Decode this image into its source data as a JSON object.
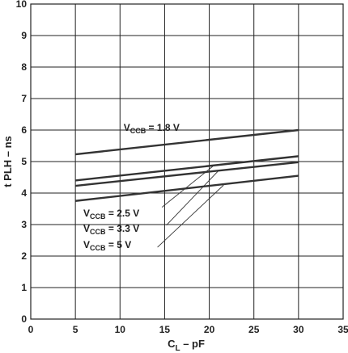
{
  "chart_data": {
    "type": "line",
    "xlabel": {
      "main": "C",
      "sub": "L",
      "rest": " – pF"
    },
    "ylabel": "t PLH – ns",
    "xlim": [
      0,
      35
    ],
    "ylim": [
      0,
      10
    ],
    "xticks": [
      0,
      5,
      10,
      15,
      20,
      25,
      30,
      35
    ],
    "yticks": [
      0,
      1,
      2,
      3,
      4,
      5,
      6,
      7,
      8,
      9,
      10
    ],
    "grid": true,
    "series": [
      {
        "name": "V_CCB = 1.8 V",
        "label": {
          "main": "V",
          "sub": "CCB",
          "rest": " = 1.8 V"
        },
        "x": [
          5,
          30
        ],
        "y": [
          5.23,
          6.0
        ],
        "label_pos": [
          10.4,
          6.08
        ],
        "leader": null
      },
      {
        "name": "V_CCB = 2.5 V",
        "label": {
          "main": "V",
          "sub": "CCB",
          "rest": " = 2.5 V"
        },
        "x": [
          5,
          30
        ],
        "y": [
          4.4,
          5.17
        ],
        "label_pos": [
          0,
          0
        ],
        "leader": [
          [
            14.7,
            3.55
          ],
          [
            20.4,
            4.85
          ]
        ]
      },
      {
        "name": "V_CCB = 3.3 V",
        "label": {
          "main": "V",
          "sub": "CCB",
          "rest": " = 3.3 V"
        },
        "x": [
          5,
          30
        ],
        "y": [
          4.23,
          4.98
        ],
        "label_pos": [
          0,
          0
        ],
        "leader": [
          [
            15.2,
            2.98
          ],
          [
            21.0,
            4.7
          ]
        ]
      },
      {
        "name": "V_CCB = 5 V",
        "label": {
          "main": "V",
          "sub": "CCB",
          "rest": " = 5 V"
        },
        "x": [
          5,
          30
        ],
        "y": [
          3.75,
          4.55
        ],
        "label_pos": [
          0,
          0
        ],
        "leader": [
          [
            14.2,
            2.28
          ],
          [
            21.6,
            4.25
          ]
        ]
      }
    ]
  }
}
